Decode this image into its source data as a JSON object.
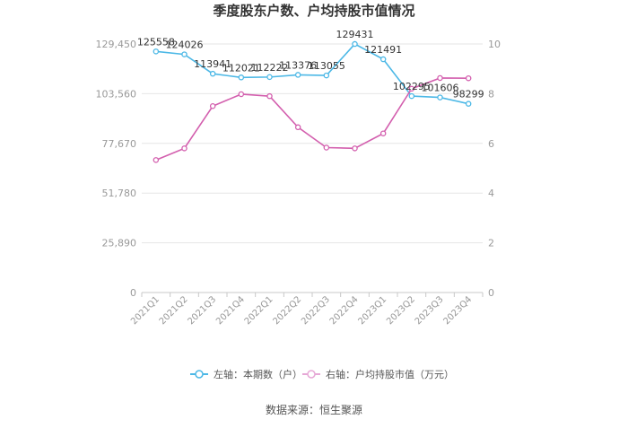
{
  "chart_data": {
    "type": "line",
    "title": "季度股东户数、户均持股市值情况",
    "categories": [
      "2021Q1",
      "2021Q2",
      "2021Q3",
      "2021Q4",
      "2022Q1",
      "2022Q2",
      "2022Q3",
      "2022Q4",
      "2023Q1",
      "2023Q2",
      "2023Q3",
      "2023Q4"
    ],
    "left_axis": {
      "ylim": [
        0,
        129450
      ],
      "tick_values": [
        0,
        25890,
        51780,
        77670,
        103560,
        129450
      ],
      "tick_labels": [
        "0",
        "25,890",
        "51,780",
        "77,670",
        "103,560",
        "129,450"
      ]
    },
    "right_axis": {
      "ylim": [
        0,
        10
      ],
      "tick_values": [
        0,
        2,
        4,
        6,
        8,
        10
      ],
      "tick_labels": [
        "0",
        "2",
        "4",
        "6",
        "8",
        "10"
      ]
    },
    "series": [
      {
        "name": "左轴：本期数（户）",
        "axis": "left",
        "color": "#4cb8e6",
        "values": [
          125558,
          124026,
          113941,
          112021,
          112222,
          113376,
          113055,
          129431,
          121491,
          102295,
          101606,
          98299
        ],
        "labels": [
          "125558",
          "124026",
          "113941",
          "112021",
          "112222",
          "113376",
          "113055",
          "129431",
          "121491",
          "102295",
          "101606",
          "98299"
        ]
      },
      {
        "name": "右轴：户均持股市值（万元）",
        "axis": "right",
        "color": "#d35fae",
        "values": [
          5.33,
          5.8,
          7.5,
          7.98,
          7.9,
          6.65,
          5.83,
          5.8,
          6.4,
          8.2,
          8.63,
          8.62
        ]
      }
    ],
    "source": "数据来源：恒生聚源"
  }
}
